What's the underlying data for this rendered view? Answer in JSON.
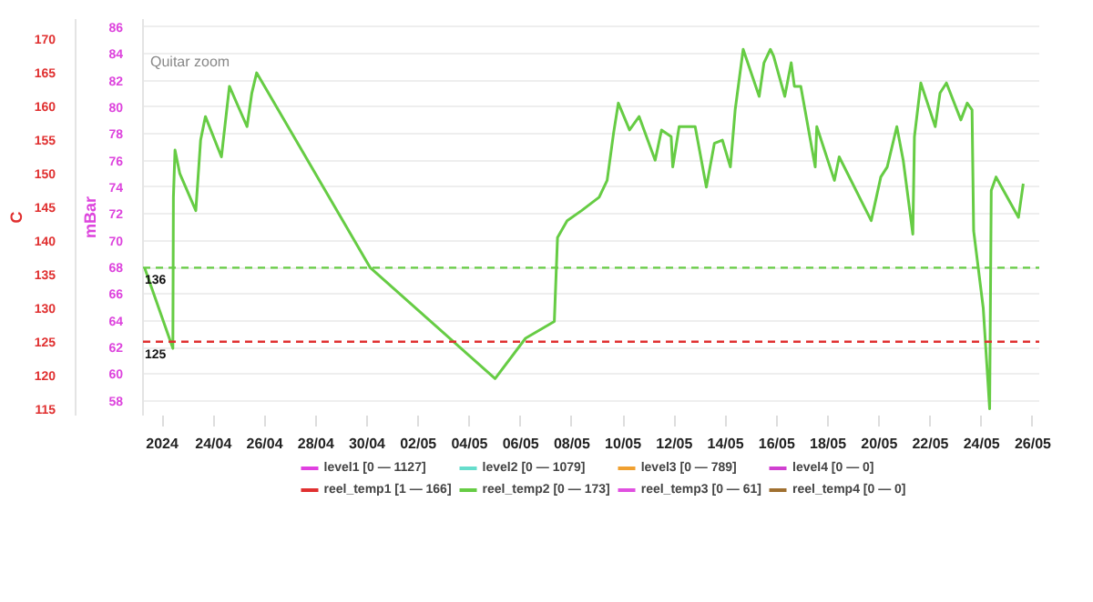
{
  "chart_data": {
    "type": "line",
    "ylabel": "C",
    "y2label": "mBar",
    "annotations": [
      "Quitar zoom"
    ],
    "xlim": [
      "2024-04-21T06:00",
      "2024-05-26T06:00"
    ],
    "xticks": [
      {
        "value": "2024-04-22",
        "label": "2024"
      },
      {
        "value": "2024-04-24",
        "label": "24/04"
      },
      {
        "value": "2024-04-26",
        "label": "26/04"
      },
      {
        "value": "2024-04-28",
        "label": "28/04"
      },
      {
        "value": "2024-04-30",
        "label": "30/04"
      },
      {
        "value": "2024-05-02",
        "label": "02/05"
      },
      {
        "value": "2024-05-04",
        "label": "04/05"
      },
      {
        "value": "2024-05-06",
        "label": "06/05"
      },
      {
        "value": "2024-05-08",
        "label": "08/05"
      },
      {
        "value": "2024-05-10",
        "label": "10/05"
      },
      {
        "value": "2024-05-12",
        "label": "12/05"
      },
      {
        "value": "2024-05-14",
        "label": "14/05"
      },
      {
        "value": "2024-05-16",
        "label": "16/05"
      },
      {
        "value": "2024-05-18",
        "label": "18/05"
      },
      {
        "value": "2024-05-20",
        "label": "20/05"
      },
      {
        "value": "2024-05-22",
        "label": "22/05"
      },
      {
        "value": "2024-05-24",
        "label": "24/05"
      },
      {
        "value": "2024-05-26",
        "label": "26/05"
      }
    ],
    "ylim": [
      114,
      173
    ],
    "yticks": [
      115,
      120,
      125,
      130,
      135,
      140,
      145,
      150,
      155,
      160,
      165,
      170
    ],
    "y2lim": [
      56.9,
      86.6
    ],
    "y2ticks": [
      58,
      60,
      62,
      64,
      66,
      68,
      70,
      72,
      74,
      76,
      78,
      80,
      82,
      84,
      86
    ],
    "grid": "y",
    "legend": "bottom",
    "marker": "none",
    "line_style": "solid",
    "ref_lines": [
      {
        "axis": "y",
        "value": 136,
        "label": "136",
        "color": "#66cc44",
        "line_style": "dashed"
      },
      {
        "axis": "y",
        "value": 125,
        "label": "125",
        "color": "#e03030",
        "line_style": "dashed"
      }
    ],
    "series": [
      {
        "name": "level1 [0 — 1127]",
        "color": "#e040e0"
      },
      {
        "name": "level2 [0 — 1079]",
        "color": "#66ddcc"
      },
      {
        "name": "level3 [0 — 789]",
        "color": "#f0a030"
      },
      {
        "name": "level4 [0 — 0]",
        "color": "#d040d0"
      },
      {
        "name": "reel_temp1 [1 — 166]",
        "color": "#e03030"
      },
      {
        "name": "reel_temp2 [0 — 173]",
        "color": "#66cc44",
        "x": [
          "2024-04-21T07:30",
          "2024-04-22T10:00",
          "2024-04-22T10:30",
          "2024-04-22T12:00",
          "2024-04-22T16:30",
          "2024-04-23T07:30",
          "2024-04-23T12:00",
          "2024-04-23T16:30",
          "2024-04-24T07:30",
          "2024-04-24T15:00",
          "2024-04-25T07:30",
          "2024-04-25T12:00",
          "2024-04-25T16:30",
          "2024-04-30T03:00",
          "2024-05-05T00:00",
          "2024-05-06T04:30",
          "2024-05-07T07:30",
          "2024-05-07T10:30",
          "2024-05-07T19:30",
          "2024-05-08T09:00",
          "2024-05-09T01:30",
          "2024-05-09T09:00",
          "2024-05-09T15:00",
          "2024-05-09T19:30",
          "2024-05-10T06:00",
          "2024-05-10T15:00",
          "2024-05-11T06:00",
          "2024-05-11T12:00",
          "2024-05-11T21:00",
          "2024-05-11T22:30",
          "2024-05-12T04:30",
          "2024-05-12T19:30",
          "2024-05-13T06:00",
          "2024-05-13T13:30",
          "2024-05-13T21:00",
          "2024-05-14T04:30",
          "2024-05-14T09:00",
          "2024-05-14T16:30",
          "2024-05-15T07:30",
          "2024-05-15T12:00",
          "2024-05-15T18:00",
          "2024-05-15T21:00",
          "2024-05-16T07:30",
          "2024-05-16T13:30",
          "2024-05-16T16:30",
          "2024-05-16T22:30",
          "2024-05-17T12:00",
          "2024-05-17T13:30",
          "2024-05-18T06:00",
          "2024-05-18T10:30",
          "2024-05-19T16:30",
          "2024-05-20T01:30",
          "2024-05-20T07:30",
          "2024-05-20T16:30",
          "2024-05-20T22:30",
          "2024-05-21T07:30",
          "2024-05-21T09:00",
          "2024-05-21T15:00",
          "2024-05-22T04:30",
          "2024-05-22T09:00",
          "2024-05-22T15:00",
          "2024-05-23T04:30",
          "2024-05-23T10:30",
          "2024-05-23T15:00",
          "2024-05-23T16:30",
          "2024-05-24T01:30",
          "2024-05-24T07:30",
          "2024-05-24T09:00",
          "2024-05-24T13:30",
          "2024-05-25T10:30",
          "2024-05-25T15:00"
        ],
        "values": [
          136,
          124,
          146.5,
          153.5,
          150,
          144.5,
          155,
          158.5,
          152.5,
          163,
          157,
          162,
          165,
          136,
          119.5,
          125.5,
          128,
          140.5,
          143,
          144.5,
          146.5,
          149,
          156,
          160.5,
          156.5,
          158.5,
          152,
          156.5,
          155.5,
          151,
          157,
          157,
          148,
          154.5,
          155,
          151,
          159.5,
          168.5,
          161.5,
          166.5,
          168.5,
          167.5,
          161.5,
          166.5,
          163,
          163,
          151,
          157,
          149,
          152.5,
          143,
          149.5,
          151,
          157,
          152,
          141,
          155.5,
          163.5,
          157,
          162,
          163.5,
          158,
          160.5,
          159.5,
          141.5,
          130,
          115,
          147.5,
          149.5,
          143.5,
          148.5
        ]
      },
      {
        "name": "reel_temp3 [0 — 61]",
        "color": "#e050e0"
      },
      {
        "name": "reel_temp4 [0 — 0]",
        "color": "#a07030"
      }
    ]
  }
}
